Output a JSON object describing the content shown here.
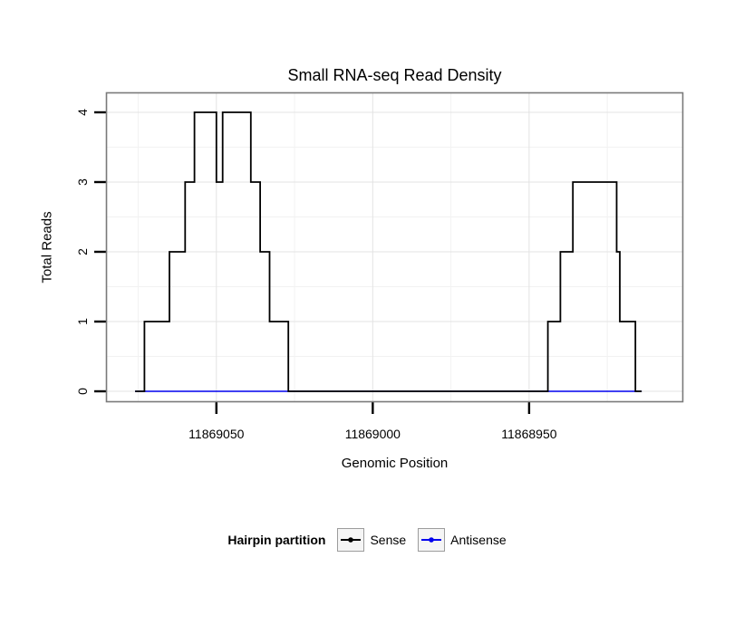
{
  "chart_data": {
    "type": "line",
    "step": true,
    "title": "Small RNA-seq Read Density",
    "xlabel": "Genomic Position",
    "ylabel": "Total Reads",
    "x_reversed": true,
    "xlim": [
      11869085,
      11868901
    ],
    "ylim": [
      0,
      4
    ],
    "grid": "on",
    "x_ticks": [
      11869050,
      11869000,
      11868950
    ],
    "x_tick_labels": [
      "11869050",
      "11869000",
      "11868950"
    ],
    "x_minor_ticks": [
      11869075,
      11869025,
      11868975,
      11868925
    ],
    "y_ticks": [
      0,
      1,
      2,
      3,
      4
    ],
    "y_tick_labels": [
      "0",
      "1",
      "2",
      "3",
      "4"
    ],
    "y_minor_ticks": [
      0.5,
      1.5,
      2.5,
      3.5
    ],
    "series": [
      {
        "name": "Sense",
        "color": "#000000",
        "domain": [
          11869076,
          11868914
        ],
        "breaks": [
          [
            11869076,
            0
          ],
          [
            11869073,
            1
          ],
          [
            11869065,
            2
          ],
          [
            11869060,
            3
          ],
          [
            11869057,
            4
          ],
          [
            11869050,
            3
          ],
          [
            11869048,
            4
          ],
          [
            11869039,
            3
          ],
          [
            11869036,
            2
          ],
          [
            11869033,
            1
          ],
          [
            11869027,
            0
          ],
          [
            11868944,
            1
          ],
          [
            11868940,
            2
          ],
          [
            11868936,
            3
          ],
          [
            11868922,
            2
          ],
          [
            11868921,
            1
          ],
          [
            11868916,
            0
          ]
        ]
      },
      {
        "name": "Antisense",
        "color": "#0000EE",
        "domain": [
          11869076,
          11868914
        ],
        "breaks": [
          [
            11869076,
            0
          ]
        ]
      }
    ],
    "legend": {
      "title": "Hairpin partition",
      "position": "bottom"
    },
    "colors": {
      "panel_border": "#7a7a7a",
      "grid_major": "#e3e3e3",
      "grid_minor": "#f2f2f2",
      "ticks": "#000000"
    }
  }
}
